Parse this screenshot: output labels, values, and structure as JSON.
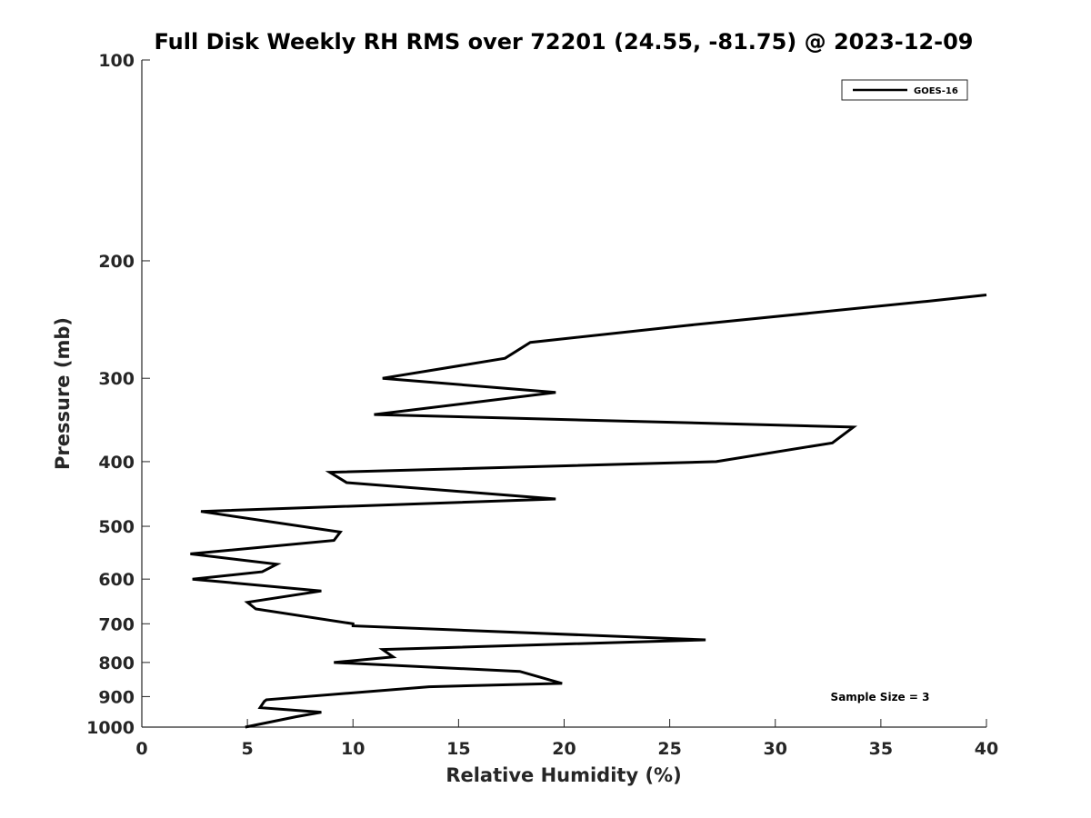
{
  "chart_data": {
    "type": "line",
    "title": "Full Disk Weekly RH RMS over 72201 (24.55, -81.75) @ 2023-12-09",
    "xlabel": "Relative Humidity (%)",
    "ylabel": "Pressure (mb)",
    "xlim": [
      0,
      40
    ],
    "ylim": [
      100,
      1000
    ],
    "y_scale": "log",
    "y_reversed": true,
    "x_ticks": [
      0,
      5,
      10,
      15,
      20,
      25,
      30,
      35,
      40
    ],
    "y_ticks": [
      100,
      200,
      300,
      400,
      500,
      600,
      700,
      800,
      900,
      1000
    ],
    "grid": false,
    "legend_position": "top-right",
    "annotation": "Sample Size = 3",
    "series": [
      {
        "name": "GOES-16",
        "color": "#000000",
        "points": [
          [
            40.0,
            225
          ],
          [
            37.2,
            230
          ],
          [
            25.8,
            250
          ],
          [
            18.4,
            265
          ],
          [
            17.2,
            280
          ],
          [
            11.4,
            300
          ],
          [
            19.6,
            315
          ],
          [
            11.0,
            340
          ],
          [
            33.7,
            355
          ],
          [
            32.7,
            375
          ],
          [
            27.2,
            400
          ],
          [
            8.9,
            415
          ],
          [
            9.7,
            430
          ],
          [
            19.6,
            455
          ],
          [
            2.8,
            475
          ],
          [
            9.4,
            510
          ],
          [
            9.1,
            525
          ],
          [
            2.3,
            550
          ],
          [
            6.4,
            570
          ],
          [
            5.7,
            585
          ],
          [
            2.4,
            600
          ],
          [
            8.5,
            625
          ],
          [
            5.0,
            650
          ],
          [
            5.4,
            665
          ],
          [
            10.0,
            700
          ],
          [
            10.0,
            705
          ],
          [
            26.7,
            740
          ],
          [
            11.4,
            765
          ],
          [
            11.9,
            785
          ],
          [
            9.1,
            800
          ],
          [
            17.9,
            825
          ],
          [
            19.9,
            860
          ],
          [
            13.6,
            870
          ],
          [
            5.9,
            910
          ],
          [
            5.8,
            915
          ],
          [
            5.6,
            935
          ],
          [
            8.5,
            950
          ],
          [
            7.3,
            965
          ],
          [
            4.9,
            1000
          ]
        ]
      }
    ]
  }
}
